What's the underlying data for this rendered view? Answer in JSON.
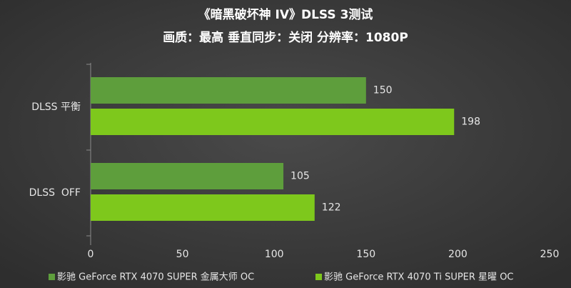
{
  "chart_data": {
    "type": "barh",
    "title": "《暗黑破坏神 IV》DLSS 3测试",
    "subtitle": "画质：最高 垂直同步：关闭 分辨率：1080P",
    "categories": [
      "DLSS 平衡",
      "DLSS  OFF"
    ],
    "series": [
      {
        "name": "影驰 GeForce RTX 4070 SUPER 金属大师 OC",
        "color": "#5e9e3c",
        "values": [
          150,
          105
        ]
      },
      {
        "name": "影驰 GeForce RTX 4070 Ti SUPER 星曜 OC",
        "color": "#7ec81c",
        "values": [
          198,
          122
        ]
      }
    ],
    "xlim": [
      0,
      250
    ],
    "xticks": [
      0,
      50,
      100,
      150,
      200,
      250
    ],
    "grid": false
  }
}
